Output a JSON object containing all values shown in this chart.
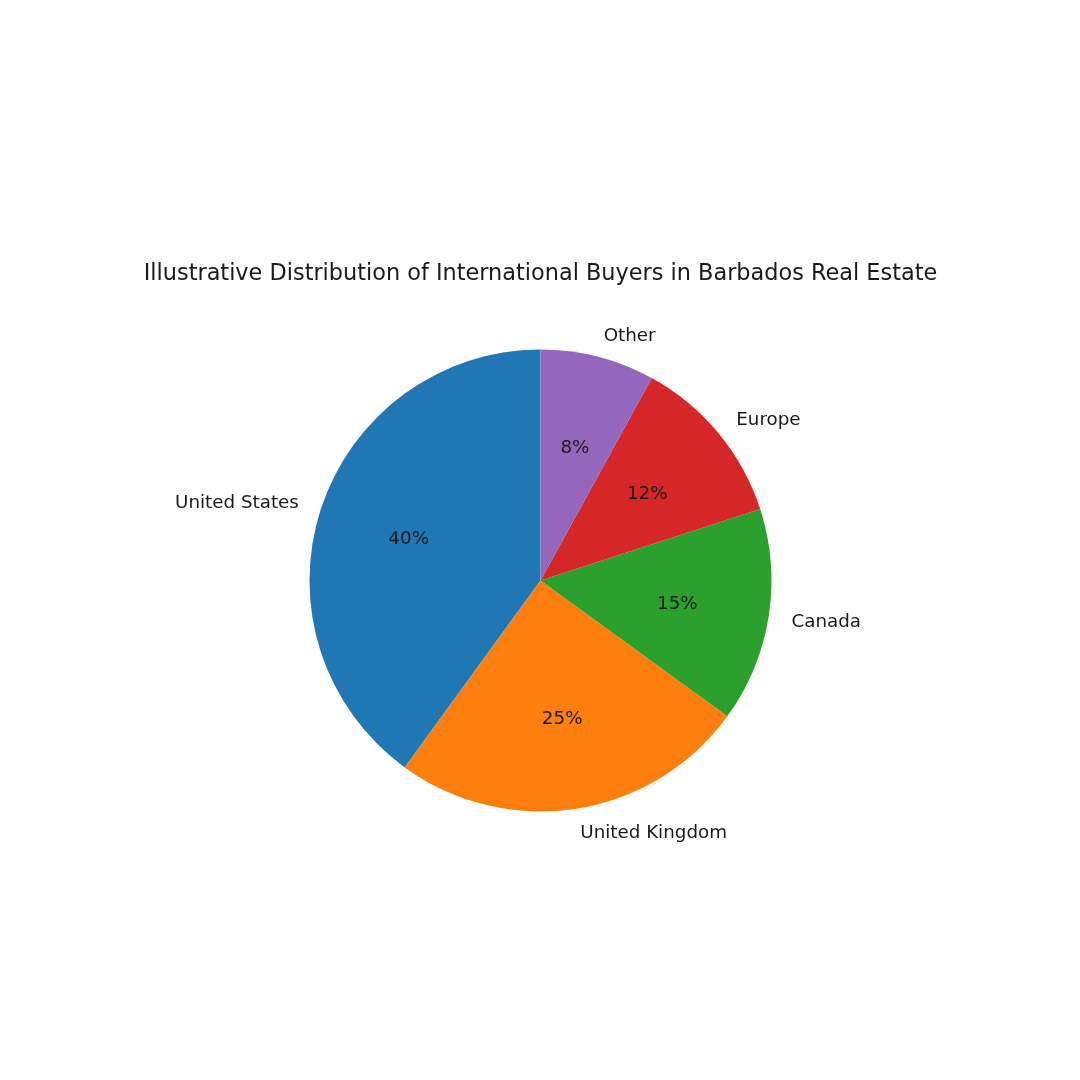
{
  "chart_data": {
    "type": "pie",
    "title": "Illustrative Distribution of International Buyers in Barbados Real Estate",
    "categories": [
      "United States",
      "United Kingdom",
      "Canada",
      "Europe",
      "Other"
    ],
    "values": [
      40,
      25,
      15,
      12,
      8
    ],
    "colors": [
      "#1f77b4",
      "#ff7f0e",
      "#2ca02c",
      "#d62728",
      "#9467bd"
    ],
    "value_labels": [
      "40%",
      "25%",
      "15%",
      "12%",
      "8%"
    ]
  }
}
